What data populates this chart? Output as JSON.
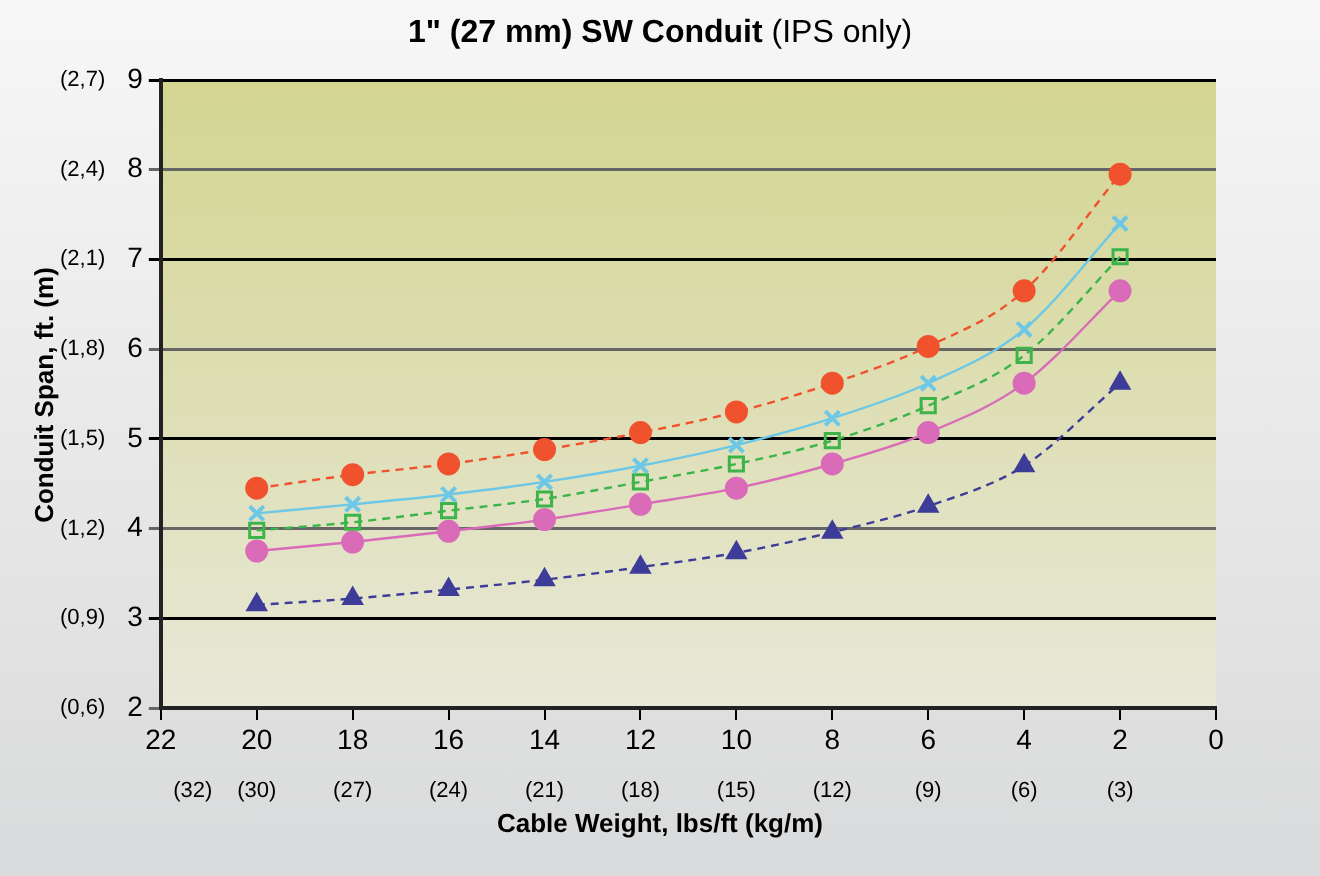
{
  "chart_data": {
    "type": "line",
    "title": "1\" (27 mm) SW Conduit",
    "subtitle": "(IPS only)",
    "xlabel": "Cable Weight, lbs/ft (kg/m)",
    "y2label": "Conduit Span, ft. (m)",
    "x": [
      20,
      18,
      16,
      14,
      12,
      10,
      8,
      6,
      4,
      2
    ],
    "xlim": [
      22,
      0
    ],
    "xticks": [
      22,
      20,
      18,
      16,
      14,
      12,
      10,
      8,
      6,
      4,
      2,
      0
    ],
    "x2lim": [
      33,
      0
    ],
    "x2ticks": [
      {
        "value": 32,
        "label": "(32)"
      },
      {
        "value": 30,
        "label": "(30)"
      },
      {
        "value": 27,
        "label": "(27)"
      },
      {
        "value": 24,
        "label": "(24)"
      },
      {
        "value": 21,
        "label": "(21)"
      },
      {
        "value": 18,
        "label": "(18)"
      },
      {
        "value": 15,
        "label": "(15)"
      },
      {
        "value": 12,
        "label": "(12)"
      },
      {
        "value": 9,
        "label": "(9)"
      },
      {
        "value": 6,
        "label": "(6)"
      },
      {
        "value": 3,
        "label": "(3)"
      }
    ],
    "ylim": [
      2,
      9
    ],
    "yticks": [
      2,
      3,
      4,
      5,
      6,
      7,
      8,
      9
    ],
    "y2lim": [
      0.6,
      2.7
    ],
    "y2ticks": [
      {
        "value": 0.6,
        "label": "(0,6)"
      },
      {
        "value": 0.9,
        "label": "(0,9)"
      },
      {
        "value": 1.2,
        "label": "(1,2)"
      },
      {
        "value": 1.5,
        "label": "(1,5)"
      },
      {
        "value": 1.8,
        "label": "(1,8)"
      },
      {
        "value": 2.1,
        "label": "(2,1)"
      },
      {
        "value": 2.4,
        "label": "(2,4)"
      },
      {
        "value": 2.7,
        "label": "(2,7)"
      }
    ],
    "grid": "y",
    "legend": false,
    "series": [
      {
        "color": "#f0522e",
        "marker": "circle",
        "line_style": "dashed",
        "values": [
          4.45,
          4.6,
          4.72,
          4.88,
          5.07,
          5.3,
          5.62,
          6.03,
          6.65,
          7.95
        ]
      },
      {
        "color": "#6cc8e6",
        "marker": "cross",
        "line_style": "solid",
        "values": [
          4.17,
          4.27,
          4.38,
          4.52,
          4.7,
          4.93,
          5.23,
          5.62,
          6.22,
          7.4
        ]
      },
      {
        "color": "#3cb44a",
        "marker": "square",
        "line_style": "dashed",
        "values": [
          3.98,
          4.07,
          4.2,
          4.33,
          4.52,
          4.72,
          4.98,
          5.37,
          5.93,
          7.03
        ]
      },
      {
        "color": "#d96bb8",
        "marker": "circle",
        "line_style": "solid",
        "values": [
          3.75,
          3.85,
          3.97,
          4.1,
          4.27,
          4.45,
          4.72,
          5.07,
          5.62,
          6.65
        ]
      },
      {
        "color": "#3d3d99",
        "marker": "triangle",
        "line_style": "dashed",
        "values": [
          3.15,
          3.22,
          3.32,
          3.43,
          3.57,
          3.73,
          3.96,
          4.25,
          4.7,
          5.62
        ]
      }
    ]
  }
}
